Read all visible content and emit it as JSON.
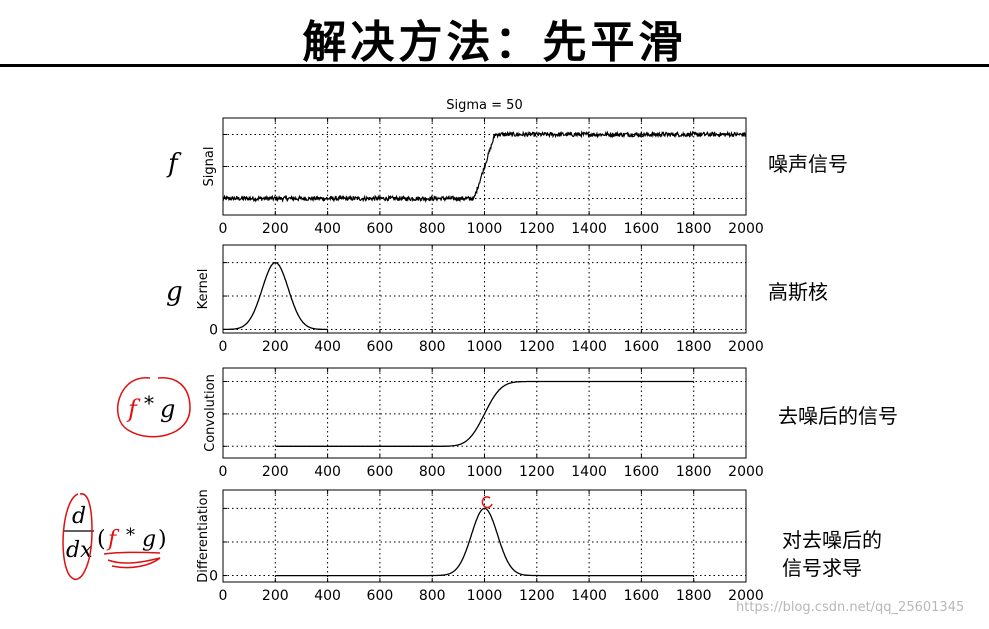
{
  "slide": {
    "title": "解决方法：先平滑",
    "corner_mark": "",
    "watermark": "https://blog.csdn.net/qq_25601345"
  },
  "side_labels": [
    "噪声信号",
    "高斯核",
    "去噪后的信号",
    "对去噪后的\n信号求导"
  ],
  "math_labels": [
    "f",
    "g",
    "f * g",
    "d/dx (f * g)"
  ],
  "colors": {
    "axis": "#000000",
    "grid": "#000000",
    "line": "#000000",
    "annotation": "#e01010"
  },
  "chart_data": [
    {
      "type": "line",
      "title": "Sigma = 50",
      "xlabel": "",
      "ylabel": "Signal",
      "xlim": [
        0,
        2000
      ],
      "xticks": [
        0,
        200,
        400,
        600,
        800,
        1000,
        1200,
        1400,
        1600,
        1800,
        2000
      ],
      "yticklabels": [],
      "ylim": [
        0,
        1
      ],
      "grid": true,
      "noisy": true,
      "series": [
        {
          "x": [
            0,
            960,
            1000,
            1040,
            2000
          ],
          "y": [
            0,
            0,
            0.5,
            1,
            1
          ]
        }
      ]
    },
    {
      "type": "line",
      "title": "",
      "xlabel": "",
      "ylabel": "Kernel",
      "xlim": [
        0,
        2000
      ],
      "xticks": [
        0,
        200,
        400,
        600,
        800,
        1000,
        1200,
        1400,
        1600,
        1800,
        2000
      ],
      "yticklabels": [
        "0"
      ],
      "ylim": [
        0,
        1
      ],
      "grid": true,
      "gaussian": {
        "center": 200,
        "sigma": 50,
        "from": 0,
        "to": 400,
        "peak": 1
      }
    },
    {
      "type": "line",
      "title": "",
      "xlabel": "",
      "ylabel": "Convolution",
      "xlim": [
        0,
        2000
      ],
      "xticks": [
        0,
        200,
        400,
        600,
        800,
        1000,
        1200,
        1400,
        1600,
        1800,
        2000
      ],
      "yticklabels": [],
      "ylim": [
        0,
        1
      ],
      "grid": true,
      "erf_step": {
        "center": 1000,
        "sigma": 50,
        "from": 200,
        "to": 1800
      }
    },
    {
      "type": "line",
      "title": "",
      "xlabel": "",
      "ylabel": "Differentiation",
      "xlim": [
        0,
        2000
      ],
      "xticks": [
        0,
        200,
        400,
        600,
        800,
        1000,
        1200,
        1400,
        1600,
        1800,
        2000
      ],
      "yticklabels": [
        "0"
      ],
      "ylim": [
        0,
        1
      ],
      "grid": true,
      "gaussian": {
        "center": 1000,
        "sigma": 50,
        "from": 200,
        "to": 1800,
        "peak": 1
      }
    }
  ]
}
